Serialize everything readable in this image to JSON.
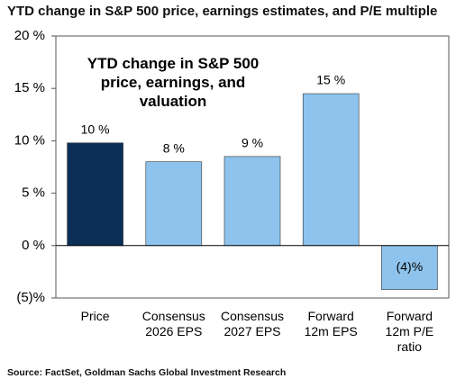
{
  "chart_data": {
    "type": "bar",
    "title": "YTD change in S&P 500 price, earnings estimates, and P/E multiple",
    "annotation": "YTD change in S&P 500 price, earnings, and valuation",
    "source": "Source: FactSet, Goldman Sachs Global Investment Research",
    "categories": [
      "Price",
      "Consensus 2026 EPS",
      "Consensus 2027 EPS",
      "Forward 12m EPS",
      "Forward 12m P/E ratio"
    ],
    "values": [
      9.8,
      8.0,
      8.5,
      14.5,
      -4.2
    ],
    "value_labels": [
      "10 %",
      "8 %",
      "9 %",
      "15 %",
      "(4)%"
    ],
    "colors": [
      "#0b2f57",
      "#8dc3ec",
      "#8dc3ec",
      "#8dc3ec",
      "#8dc3ec"
    ],
    "ylim": [
      -5,
      20
    ],
    "yticks": [
      {
        "value": -5,
        "label": "(5)%"
      },
      {
        "value": 0,
        "label": "0 %"
      },
      {
        "value": 5,
        "label": "5 %"
      },
      {
        "value": 10,
        "label": "10 %"
      },
      {
        "value": 15,
        "label": "15 %"
      },
      {
        "value": 20,
        "label": "20 %"
      }
    ]
  }
}
